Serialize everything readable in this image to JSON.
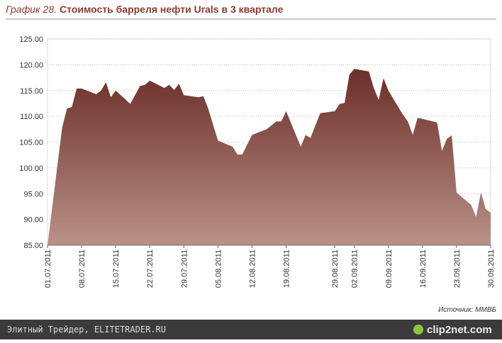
{
  "chart_data": {
    "type": "area",
    "title_prefix": "График 28.",
    "title": "Стоимость барреля нефти Urals в 3 квартале",
    "source": "Источник: ММВБ",
    "color": "#6b2e29",
    "x": [
      "01.07.2011",
      "04.07.2011",
      "05.07.2011",
      "06.07.2011",
      "07.07.2011",
      "08.07.2011",
      "11.07.2011",
      "12.07.2011",
      "13.07.2011",
      "14.07.2011",
      "15.07.2011",
      "18.07.2011",
      "20.07.2011",
      "21.07.2011",
      "22.07.2011",
      "25.07.2011",
      "26.07.2011",
      "27.07.2011",
      "28.07.2011",
      "29.07.2011",
      "01.08.2011",
      "02.08.2011",
      "03.08.2011",
      "05.08.2011",
      "08.08.2011",
      "09.08.2011",
      "10.08.2011",
      "11.08.2011",
      "12.08.2011",
      "15.08.2011",
      "17.08.2011",
      "18.08.2011",
      "19.08.2011",
      "22.08.2011",
      "23.08.2011",
      "24.08.2011",
      "26.08.2011",
      "29.08.2011",
      "30.08.2011",
      "31.08.2011",
      "01.09.2011",
      "02.09.2011",
      "05.09.2011",
      "06.09.2011",
      "07.09.2011",
      "08.09.2011",
      "09.09.2011",
      "12.09.2011",
      "13.09.2011",
      "14.09.2011",
      "15.09.2011",
      "16.09.2011",
      "19.09.2011",
      "20.09.2011",
      "21.09.2011",
      "22.09.2011",
      "23.09.2011",
      "26.09.2011",
      "27.09.2011",
      "28.09.2011",
      "29.09.2011",
      "30.09.2011"
    ],
    "values": [
      85.0,
      107.8,
      111.5,
      111.8,
      115.4,
      115.4,
      114.3,
      115.0,
      116.6,
      113.7,
      115.0,
      112.4,
      115.9,
      116.1,
      116.9,
      115.5,
      116.1,
      115.1,
      116.3,
      114.1,
      113.7,
      113.9,
      111.5,
      105.3,
      104.1,
      102.6,
      102.6,
      104.5,
      106.4,
      107.5,
      109.0,
      109.0,
      111.0,
      104.1,
      106.4,
      105.8,
      110.6,
      111.0,
      112.4,
      112.6,
      118.1,
      119.2,
      118.7,
      115.5,
      113.2,
      117.4,
      115.0,
      110.3,
      109.0,
      106.4,
      109.7,
      109.5,
      108.8,
      103.3,
      105.6,
      106.3,
      95.2,
      92.8,
      90.5,
      95.2,
      92.0,
      91.3
    ],
    "xlim": [
      "01.07.2011",
      "30.09.2011"
    ],
    "xticks": [
      "01.07.2011",
      "08.07.2011",
      "15.07.2011",
      "22.07.2011",
      "29.07.2011",
      "05.08.2011",
      "12.08.2011",
      "19.08.2011",
      "29.08.2011",
      "02.09.2011",
      "09.09.2011",
      "16.09.2011",
      "23.09.2011",
      "30.09.2011"
    ],
    "ylim": [
      85,
      125
    ],
    "yticks": [
      {
        "value": 85,
        "label": "85.00"
      },
      {
        "value": 90,
        "label": "90.00"
      },
      {
        "value": 95,
        "label": "95.00"
      },
      {
        "value": 100,
        "label": "100.00"
      },
      {
        "value": 105,
        "label": "105.00"
      },
      {
        "value": 110,
        "label": "110.00"
      },
      {
        "value": 115,
        "label": "115.00"
      },
      {
        "value": 120,
        "label": "120.00"
      },
      {
        "value": 125,
        "label": "125.00"
      }
    ],
    "grid": true
  },
  "footer": {
    "site": "Элитный Трейдер, ELITETRADER.RU",
    "logo": "clip2net.com"
  }
}
